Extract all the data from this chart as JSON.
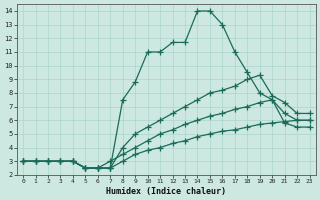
{
  "xlabel": "Humidex (Indice chaleur)",
  "background_color": "#cce8e0",
  "line_color": "#1a6b5a",
  "xlim": [
    -0.5,
    23.5
  ],
  "ylim": [
    2,
    14.5
  ],
  "xticks": [
    0,
    1,
    2,
    3,
    4,
    5,
    6,
    7,
    8,
    9,
    10,
    11,
    12,
    13,
    14,
    15,
    16,
    17,
    18,
    19,
    20,
    21,
    22,
    23
  ],
  "yticks": [
    2,
    3,
    4,
    5,
    6,
    7,
    8,
    9,
    10,
    11,
    12,
    13,
    14
  ],
  "lines": [
    {
      "x": [
        0,
        1,
        2,
        3,
        4,
        5,
        6,
        7,
        8,
        9,
        10,
        11,
        12,
        13,
        14,
        15,
        16,
        17,
        18,
        19,
        20,
        21,
        22,
        23
      ],
      "y": [
        3,
        3,
        3,
        3,
        3,
        2.5,
        2.5,
        2.5,
        7.5,
        8.8,
        11,
        11,
        11.7,
        11.7,
        14,
        14,
        13,
        11,
        9.5,
        8,
        7.5,
        6.5,
        6,
        6
      ]
    },
    {
      "x": [
        0,
        1,
        2,
        3,
        4,
        5,
        6,
        7,
        8,
        9,
        10,
        11,
        12,
        13,
        14,
        15,
        16,
        17,
        18,
        19,
        20,
        21,
        22,
        23
      ],
      "y": [
        3,
        3,
        3,
        3,
        3,
        2.5,
        2.5,
        2.5,
        4,
        5,
        5.5,
        6,
        6.5,
        7,
        7.5,
        8,
        8.2,
        8.5,
        9,
        9.3,
        7.8,
        7.3,
        6.5,
        6.5
      ]
    },
    {
      "x": [
        0,
        1,
        2,
        3,
        4,
        5,
        6,
        7,
        8,
        9,
        10,
        11,
        12,
        13,
        14,
        15,
        16,
        17,
        18,
        19,
        20,
        21,
        22,
        23
      ],
      "y": [
        3,
        3,
        3,
        3,
        3,
        2.5,
        2.5,
        3,
        3.5,
        4,
        4.5,
        5,
        5.3,
        5.7,
        6,
        6.3,
        6.5,
        6.8,
        7,
        7.3,
        7.5,
        5.8,
        5.5,
        5.5
      ]
    },
    {
      "x": [
        0,
        1,
        2,
        3,
        4,
        5,
        6,
        7,
        8,
        9,
        10,
        11,
        12,
        13,
        14,
        15,
        16,
        17,
        18,
        19,
        20,
        21,
        22,
        23
      ],
      "y": [
        3,
        3,
        3,
        3,
        3,
        2.5,
        2.5,
        2.5,
        3,
        3.5,
        3.8,
        4,
        4.3,
        4.5,
        4.8,
        5,
        5.2,
        5.3,
        5.5,
        5.7,
        5.8,
        5.9,
        6,
        6
      ]
    }
  ]
}
